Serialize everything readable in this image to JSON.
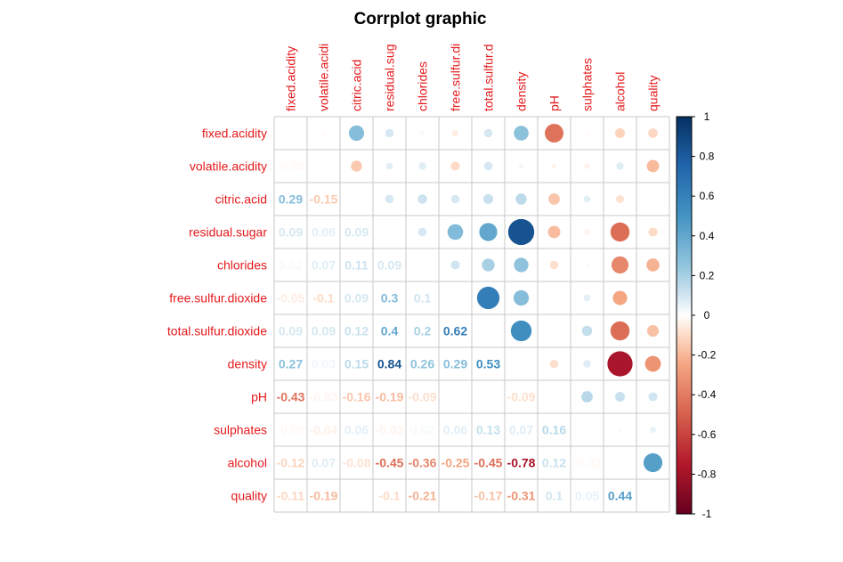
{
  "chart_data": {
    "type": "heatmap",
    "title": "Corrplot graphic",
    "variables": [
      "fixed.acidity",
      "volatile.acidity",
      "citric.acid",
      "residual.sugar",
      "chlorides",
      "free.sulfur.dioxide",
      "total.sulfur.dioxide",
      "density",
      "pH",
      "sulphates",
      "alcohol",
      "quality"
    ],
    "column_labels": [
      "fixed.acidity",
      "volatile.acidi",
      "citric.acid",
      "residual.sug",
      "chlorides",
      "free.sulfur.di",
      "total.sulfur.d",
      "density",
      "pH",
      "sulphates",
      "alcohol",
      "quality"
    ],
    "row_labels": [
      "fixed.acidity",
      "volatile.acidity",
      "citric.acid",
      "residual.sugar",
      "chlorides",
      "free.sulfur.dioxide",
      "total.sulfur.dioxide",
      "density",
      "pH",
      "sulphates",
      "alcohol",
      "quality"
    ],
    "lower_number_labels": [
      [],
      [
        "-0.02"
      ],
      [
        "0.29",
        "-0.15"
      ],
      [
        "0.09",
        "0.06",
        "0.09"
      ],
      [
        "0.02",
        "0.07",
        "0.11",
        "0.09"
      ],
      [
        "-0.05",
        "-0.1",
        "0.09",
        "0.3",
        "0.1"
      ],
      [
        "0.09",
        "0.09",
        "0.12",
        "0.4",
        "0.2",
        "0.62"
      ],
      [
        "0.27",
        "0.03",
        "0.15",
        "0.84",
        "0.26",
        "0.29",
        "0.53"
      ],
      [
        "-0.43",
        "-0.03",
        "-0.16",
        "-0.19",
        "-0.09",
        "0",
        "0",
        "-0.09"
      ],
      [
        "-0.02",
        "-0.04",
        "0.06",
        "-0.03",
        "0.02",
        "0.06",
        "0.13",
        "0.07",
        "0.16"
      ],
      [
        "-0.12",
        "0.07",
        "-0.08",
        "-0.45",
        "-0.36",
        "-0.25",
        "-0.45",
        "-0.78",
        "0.12",
        "-0.02"
      ],
      [
        "-0.11",
        "-0.19",
        "0",
        "-0.1",
        "-0.21",
        "0",
        "-0.17",
        "-0.31",
        "0.1",
        "0.05",
        "0.44"
      ]
    ],
    "legend_ticks": [
      "1",
      "0.8",
      "0.6",
      "0.4",
      "0.2",
      "0",
      "-0.2",
      "-0.4",
      "-0.6",
      "-0.8",
      "-1"
    ],
    "color_scale": {
      "stops": [
        {
          "value": -1,
          "color": "#67001F"
        },
        {
          "value": -0.75,
          "color": "#B2182B"
        },
        {
          "value": -0.5,
          "color": "#D6604D"
        },
        {
          "value": -0.25,
          "color": "#F4A582"
        },
        {
          "value": -0.1,
          "color": "#FDDBC7"
        },
        {
          "value": 0,
          "color": "#FFFFFF"
        },
        {
          "value": 0.1,
          "color": "#D1E5F0"
        },
        {
          "value": 0.25,
          "color": "#92C5DE"
        },
        {
          "value": 0.5,
          "color": "#4393C3"
        },
        {
          "value": 0.75,
          "color": "#2166AC"
        },
        {
          "value": 1,
          "color": "#053061"
        }
      ]
    },
    "label_color": "#E41A1C",
    "grid_color": "#C8C8C8"
  }
}
